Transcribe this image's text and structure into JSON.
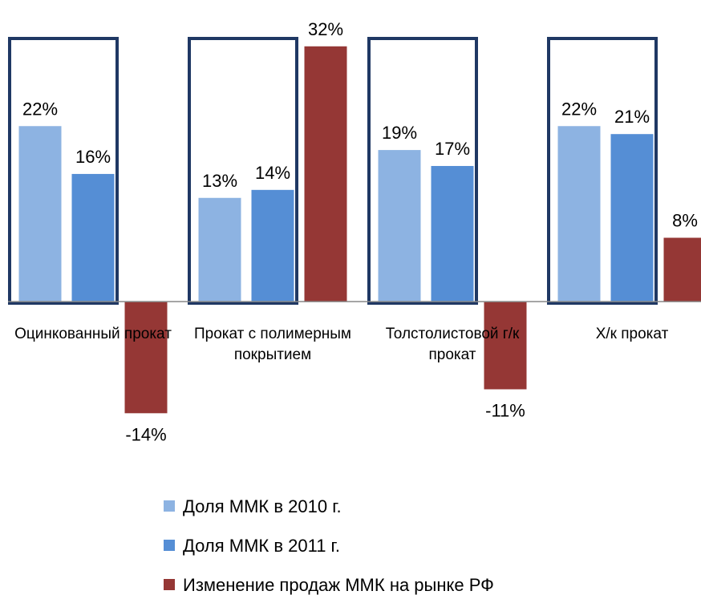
{
  "chart_data": {
    "type": "bar",
    "categories": [
      "Оцинкованный прокат",
      "Прокат с полимерным покрытием",
      "Толстолистовой г/к прокат",
      "Х/к прокат"
    ],
    "series": [
      {
        "name": "Доля ММК в 2010 г.",
        "color": "#8db3e2",
        "values": [
          22,
          13,
          19,
          22
        ],
        "value_labels": [
          "22%",
          "13%",
          "19%",
          "22%"
        ]
      },
      {
        "name": "Доля ММК в 2011 г.",
        "color": "#558ed5",
        "values": [
          16,
          14,
          17,
          21
        ],
        "value_labels": [
          "16%",
          "14%",
          "17%",
          "21%"
        ]
      },
      {
        "name": "Изменение продаж ММК на рынке РФ",
        "color": "#953735",
        "values": [
          -14,
          32,
          -11,
          8
        ],
        "value_labels": [
          "-14%",
          "32%",
          "-11%",
          "8%"
        ]
      }
    ],
    "ylim": [
      -20,
      36
    ],
    "legend": "bottom"
  }
}
